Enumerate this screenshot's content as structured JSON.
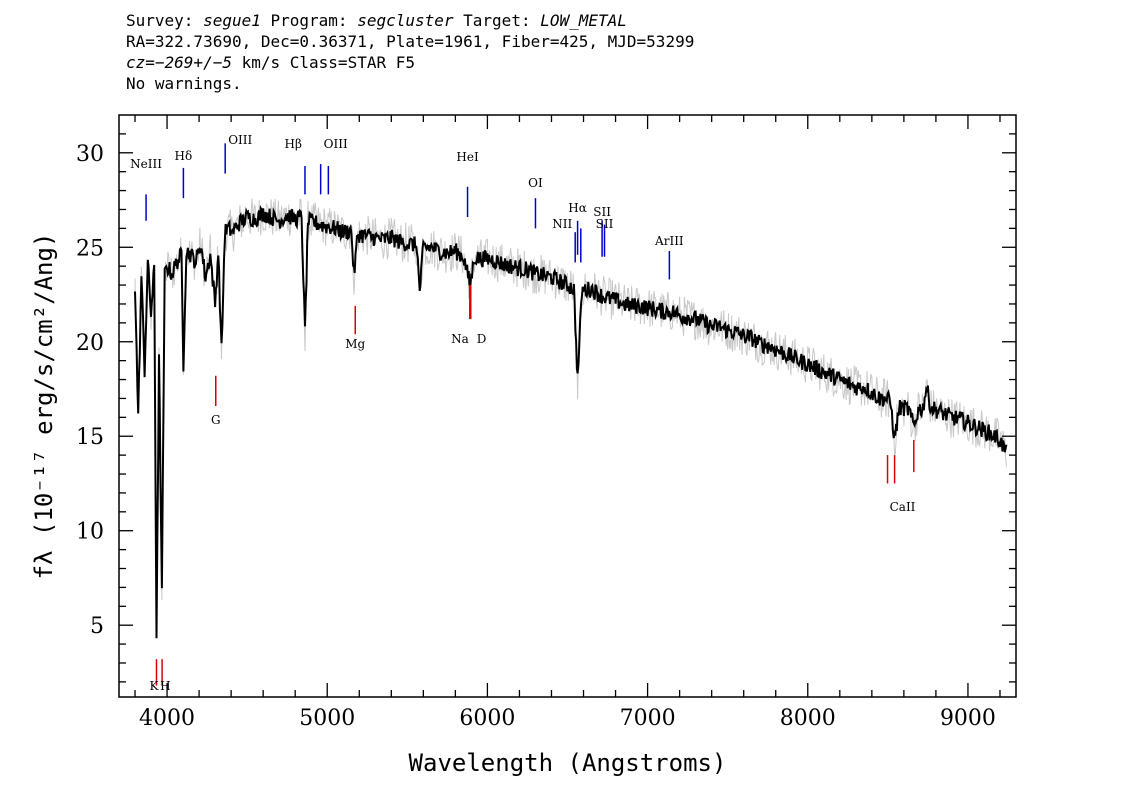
{
  "header": {
    "line1": {
      "survey_label": "Survey: ",
      "survey": "segue1",
      "program_label": " Program: ",
      "program": "segcluster",
      "target_label": " Target: ",
      "target": "LOW_METAL"
    },
    "line2": "RA=322.73690, Dec=0.36371, Plate=1961, Fiber=425, MJD=53299",
    "line3": {
      "cz": "cz=−269+/−5",
      "rest": " km/s Class=STAR F5"
    },
    "line4": "No warnings."
  },
  "chart_data": {
    "type": "line",
    "xlabel": "Wavelength (Angstroms)",
    "ylabel": "fλ (10⁻¹⁷ erg/s/cm²/Ang)",
    "xlim": [
      3700,
      9300
    ],
    "ylim": [
      1.2,
      32
    ],
    "xticks": [
      4000,
      5000,
      6000,
      7000,
      8000,
      9000
    ],
    "yticks": [
      5,
      10,
      15,
      20,
      25,
      30
    ],
    "x_minor_step": 200,
    "y_minor_step": 1,
    "grid": false,
    "colors": {
      "flux": "#000000",
      "error_band": "#c8c8c8",
      "emission": "#0000cc",
      "absorption": "#dd0000"
    },
    "series": [
      {
        "name": "flux",
        "x": [
          3800,
          3820,
          3840,
          3860,
          3880,
          3900,
          3920,
          3934,
          3950,
          3968,
          3985,
          4000,
          4030,
          4060,
          4090,
          4102,
          4120,
          4150,
          4180,
          4210,
          4240,
          4270,
          4300,
          4320,
          4340,
          4361,
          4380,
          4410,
          4440,
          4470,
          4500,
          4550,
          4600,
          4650,
          4700,
          4750,
          4800,
          4840,
          4861,
          4880,
          4920,
          4960,
          5000,
          5050,
          5100,
          5150,
          5167,
          5190,
          5250,
          5300,
          5350,
          5400,
          5450,
          5500,
          5560,
          5577,
          5600,
          5650,
          5700,
          5750,
          5800,
          5850,
          5893,
          5920,
          5950,
          6000,
          6050,
          6100,
          6150,
          6200,
          6250,
          6300,
          6350,
          6400,
          6450,
          6500,
          6540,
          6563,
          6590,
          6650,
          6700,
          6750,
          6800,
          6850,
          6900,
          6950,
          7000,
          7050,
          7100,
          7150,
          7200,
          7250,
          7300,
          7350,
          7400,
          7450,
          7500,
          7550,
          7600,
          7650,
          7700,
          7750,
          7800,
          7850,
          7900,
          7950,
          8000,
          8050,
          8100,
          8150,
          8200,
          8250,
          8300,
          8350,
          8400,
          8450,
          8498,
          8520,
          8542,
          8570,
          8600,
          8630,
          8662,
          8690,
          8720,
          8740,
          8770,
          8800,
          8850,
          8900,
          8950,
          9000,
          9050,
          9100,
          9150,
          9200,
          9240
        ],
        "y": [
          23.0,
          16.0,
          23.5,
          18.5,
          24.2,
          21.5,
          23.8,
          4.6,
          19.0,
          6.6,
          23.5,
          24.0,
          23.6,
          24.2,
          24.6,
          18.8,
          24.8,
          24.6,
          24.2,
          25.2,
          23.4,
          24.6,
          22.0,
          24.8,
          19.5,
          25.8,
          26.0,
          25.8,
          26.2,
          26.4,
          26.6,
          26.5,
          26.8,
          26.6,
          26.4,
          26.7,
          26.5,
          26.6,
          20.5,
          26.4,
          26.3,
          26.2,
          26.1,
          26.0,
          25.8,
          25.9,
          23.5,
          25.7,
          25.6,
          25.5,
          25.4,
          25.5,
          25.3,
          25.2,
          25.1,
          22.6,
          25.0,
          25.0,
          24.8,
          24.7,
          24.8,
          24.5,
          23.0,
          24.5,
          24.4,
          24.4,
          24.3,
          24.1,
          24.0,
          23.9,
          23.8,
          23.6,
          23.5,
          23.4,
          23.2,
          23.0,
          22.8,
          18.0,
          22.7,
          22.8,
          22.5,
          22.3,
          22.2,
          22.0,
          21.9,
          21.9,
          21.8,
          21.7,
          21.6,
          21.6,
          21.4,
          21.3,
          21.2,
          21.0,
          20.8,
          20.8,
          20.6,
          20.5,
          20.3,
          20.2,
          19.9,
          19.8,
          19.6,
          19.4,
          19.2,
          19.0,
          18.8,
          18.6,
          18.4,
          18.2,
          18.0,
          17.8,
          17.6,
          17.6,
          17.3,
          17.0,
          17.0,
          16.6,
          14.8,
          16.5,
          16.5,
          16.4,
          15.5,
          16.4,
          16.5,
          17.6,
          16.5,
          16.4,
          16.2,
          16.0,
          15.9,
          15.7,
          15.5,
          15.3,
          15.1,
          14.8,
          14.1
        ]
      }
    ],
    "emission_lines": [
      {
        "label": "NeIII",
        "wave": 3869
      },
      {
        "label": "Hδ",
        "wave": 4102
      },
      {
        "label": "OIII",
        "wave": 4363
      },
      {
        "label": "Hβ",
        "wave": 4861
      },
      {
        "label": "OIII",
        "wave": 4959
      },
      {
        "label": "OIII",
        "wave": 5007
      },
      {
        "label": "HeI",
        "wave": 5876
      },
      {
        "label": "OI",
        "wave": 6300
      },
      {
        "label": "NII",
        "wave": 6548
      },
      {
        "label": "Hα",
        "wave": 6563
      },
      {
        "label": "NII",
        "wave": 6583
      },
      {
        "label": "SII",
        "wave": 6716
      },
      {
        "label": "SII",
        "wave": 6731
      },
      {
        "label": "ArIII",
        "wave": 7136
      }
    ],
    "absorption_lines": [
      {
        "label": "K",
        "wave": 3934
      },
      {
        "label": "H",
        "wave": 3969
      },
      {
        "label": "G",
        "wave": 4304
      },
      {
        "label": "Mg",
        "wave": 5175
      },
      {
        "label": "Na",
        "wave": 5890
      },
      {
        "label": "D",
        "wave": 5896
      },
      {
        "label": "CaII",
        "wave": 8498
      },
      {
        "label": "CaII",
        "wave": 8542
      },
      {
        "label": "CaII",
        "wave": 8662
      }
    ]
  }
}
